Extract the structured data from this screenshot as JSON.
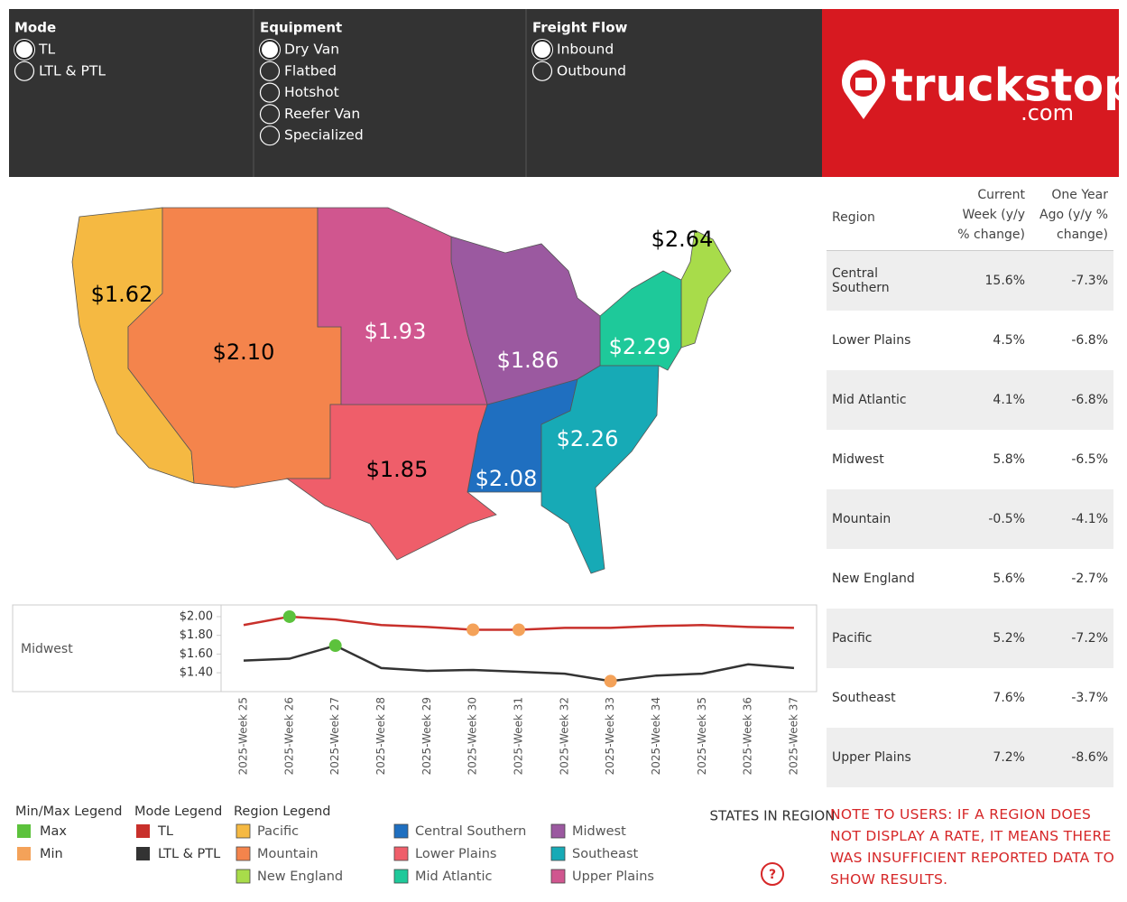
{
  "filters": [
    {
      "title": "Mode",
      "options": [
        {
          "label": "TL",
          "selected": true
        },
        {
          "label": "LTL & PTL",
          "selected": false
        }
      ]
    },
    {
      "title": "Equipment",
      "options": [
        {
          "label": "Dry Van",
          "selected": true
        },
        {
          "label": "Flatbed",
          "selected": false
        },
        {
          "label": "Hotshot",
          "selected": false
        },
        {
          "label": "Reefer Van",
          "selected": false
        },
        {
          "label": "Specialized",
          "selected": false
        }
      ]
    },
    {
      "title": "Freight Flow",
      "options": [
        {
          "label": "Inbound",
          "selected": true
        },
        {
          "label": "Outbound",
          "selected": false
        }
      ]
    }
  ],
  "logo": {
    "name": "truckstop",
    "suffix": ".com"
  },
  "map": {
    "regions": [
      {
        "name": "Pacific",
        "color": "#f5b942",
        "rate": "$1.62"
      },
      {
        "name": "Mountain",
        "color": "#f4844c",
        "rate": "$2.10"
      },
      {
        "name": "New England",
        "color": "#a8dc4a",
        "rate": "$2.64"
      },
      {
        "name": "Central Southern",
        "color": "#1f6fc0",
        "rate": "$2.08"
      },
      {
        "name": "Lower Plains",
        "color": "#ef5e6a",
        "rate": "$1.85"
      },
      {
        "name": "Mid Atlantic",
        "color": "#1ec99a",
        "rate": "$2.29"
      },
      {
        "name": "Midwest",
        "color": "#9b59a0",
        "rate": "$1.86"
      },
      {
        "name": "Southeast",
        "color": "#17aab6",
        "rate": "$2.26"
      },
      {
        "name": "Upper Plains",
        "color": "#d0568f",
        "rate": "$1.93"
      }
    ]
  },
  "table": {
    "columns": [
      "Region",
      "Current Week (y/y % change)",
      "One Year Ago (y/y % change)"
    ],
    "rows": [
      [
        "Central Southern",
        "15.6%",
        "-7.3%"
      ],
      [
        "Lower Plains",
        "4.5%",
        "-6.8%"
      ],
      [
        "Mid Atlantic",
        "4.1%",
        "-6.8%"
      ],
      [
        "Midwest",
        "5.8%",
        "-6.5%"
      ],
      [
        "Mountain",
        "-0.5%",
        "-4.1%"
      ],
      [
        "New England",
        "5.6%",
        "-2.7%"
      ],
      [
        "Pacific",
        "5.2%",
        "-7.2%"
      ],
      [
        "Southeast",
        "7.6%",
        "-3.7%"
      ],
      [
        "Upper Plains",
        "7.2%",
        "-8.6%"
      ]
    ]
  },
  "chart_data": {
    "type": "line",
    "region": "Midwest",
    "categories": [
      "2025-Week 25",
      "2025-Week 26",
      "2025-Week 27",
      "2025-Week 28",
      "2025-Week 29",
      "2025-Week 30",
      "2025-Week 31",
      "2025-Week 32",
      "2025-Week 33",
      "2025-Week 34",
      "2025-Week 35",
      "2025-Week 36",
      "2025-Week 37"
    ],
    "series": [
      {
        "name": "TL",
        "color": "#c8302b",
        "values": [
          1.91,
          2.0,
          1.97,
          1.91,
          1.89,
          1.86,
          1.86,
          1.88,
          1.88,
          1.9,
          1.91,
          1.89,
          1.88
        ]
      },
      {
        "name": "LTL & PTL",
        "color": "#333333",
        "values": [
          1.53,
          1.55,
          1.69,
          1.45,
          1.42,
          1.43,
          1.41,
          1.39,
          1.31,
          1.37,
          1.39,
          1.49,
          1.45
        ]
      }
    ],
    "ylim": [
      1.2,
      2.1
    ],
    "yticks": [
      {
        "value": 1.4,
        "label": "$1.40"
      },
      {
        "value": 1.6,
        "label": "$1.60"
      },
      {
        "value": 1.8,
        "label": "$1.80"
      },
      {
        "value": 2.0,
        "label": "$2.00"
      }
    ]
  },
  "legends": {
    "minmax": {
      "title": "Min/Max Legend",
      "items": [
        {
          "label": "Max",
          "color": "#5cc23c"
        },
        {
          "label": "Min",
          "color": "#f4a259"
        }
      ]
    },
    "mode_title": "Mode Legend",
    "region_title": "Region Legend"
  },
  "states_button": {
    "label": "STATES IN REGION",
    "icon": "?"
  },
  "note": "NOTE TO USERS: IF A REGION DOES NOT DISPLAY A RATE, IT MEANS THERE WAS INSUFFICIENT REPORTED DATA TO SHOW RESULTS."
}
